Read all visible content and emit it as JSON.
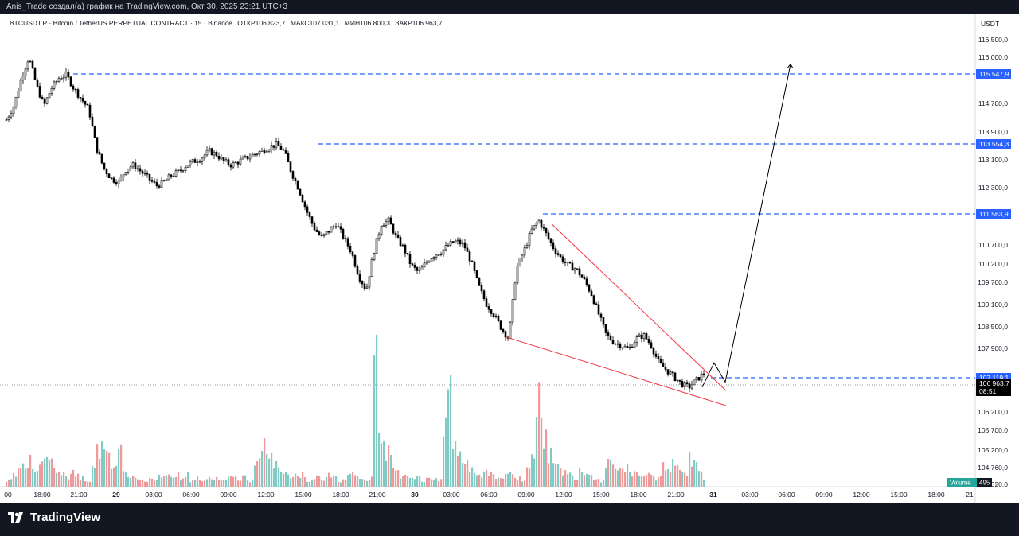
{
  "header": {
    "caption": "Anis_Trade создал(а) график на TradingView.com, Окт 30, 2025 23:21 UTC+3"
  },
  "legend": {
    "symbol": "BTCUSDT.P · Bitcoin / TetherUS PERPETUAL CONTRACT · 15 · Binance",
    "open_label": "ОТКР",
    "open": "106 823,7",
    "high_label": "МАКС",
    "high": "107 031,1",
    "low_label": "МИН",
    "low": "106 800,3",
    "close_label": "ЗАКР",
    "close": "106 963,7"
  },
  "price_axis": {
    "currency": "USDT",
    "ticks": [
      "116 500,0",
      "116 000,0",
      "114 700,0",
      "113 900,0",
      "113 100,0",
      "112 300,0",
      "110 700,0",
      "110 200,0",
      "109 700,0",
      "109 100,0",
      "108 500,0",
      "107 900,0",
      "106 200,0",
      "105 700,0",
      "105 200,0",
      "104 760,0",
      "104 320,0"
    ],
    "tag_levels": [
      "115 547,9",
      "113 554,3",
      "111 563,9",
      "107 119,1"
    ],
    "current_price": "106 963,7",
    "countdown": "08:51"
  },
  "volume": {
    "label": "Volume",
    "value": "495"
  },
  "time_axis": {
    "ticks": [
      "00",
      "18:00",
      "21:00",
      "29",
      "03:00",
      "06:00",
      "09:00",
      "12:00",
      "15:00",
      "18:00",
      "21:00",
      "30",
      "03:00",
      "06:00",
      "09:00",
      "12:00",
      "15:00",
      "18:00",
      "21:00",
      "31",
      "03:00",
      "06:00",
      "09:00",
      "12:00",
      "15:00",
      "18:00",
      "21"
    ]
  },
  "brand": {
    "name": "TradingView"
  },
  "colors": {
    "up": "#26a69a",
    "down": "#ef5350",
    "candle": "#000000",
    "level_line": "#2962ff",
    "wedge": "#f23645",
    "projection": "#000000",
    "tag_bg": "#2962ff",
    "price_tag_bg": "#000000"
  },
  "chart_data": {
    "type": "candlestick",
    "symbol": "BTCUSDT.P",
    "timeframe": "15",
    "ylim": [
      104320,
      116900
    ],
    "horizontal_levels": [
      115547.9,
      113554.3,
      111563.9,
      107119.1
    ],
    "current_price": 106963.7,
    "ohlc_last": {
      "open": 106823.7,
      "high": 107031.1,
      "low": 106800.3,
      "close": 106963.7
    },
    "price_path": [
      114200,
      114600,
      115400,
      116000,
      115200,
      114600,
      115100,
      115400,
      115500,
      115100,
      114800,
      114500,
      113400,
      112800,
      112500,
      112400,
      112800,
      112900,
      112700,
      112500,
      112300,
      112400,
      112600,
      112700,
      112900,
      113000,
      113100,
      113300,
      113200,
      113000,
      112900,
      113000,
      113100,
      113200,
      113300,
      113400,
      113500,
      113300,
      112700,
      112200,
      111600,
      111100,
      110800,
      111000,
      111200,
      110800,
      110400,
      109700,
      109300,
      110400,
      111200,
      111300,
      110800,
      110500,
      110000,
      109800,
      110100,
      110300,
      110400,
      110600,
      110700,
      110600,
      110100,
      109400,
      108900,
      108600,
      108200,
      107900,
      109900,
      110400,
      111000,
      111300,
      110900,
      110500,
      110200,
      110000,
      109900,
      109600,
      109200,
      108600,
      108000,
      107800,
      107700,
      107600,
      107900,
      108000,
      107700,
      107200,
      107000,
      106800,
      106600,
      106500,
      106700,
      106900
    ],
    "wedge": {
      "upper": [
        [
          111200,
          "start"
        ],
        [
          106400,
          "end"
        ]
      ],
      "lower": [
        [
          107950,
          "start"
        ],
        [
          105970,
          "end"
        ]
      ]
    },
    "projection_path": [
      106500,
      107200,
      106650,
      115800
    ],
    "volume_path": [
      2,
      4,
      6,
      8,
      9,
      5,
      10,
      12,
      8,
      6,
      4,
      3,
      5,
      4,
      3,
      2,
      6,
      12,
      18,
      10,
      8,
      14,
      6,
      4,
      3,
      2,
      2,
      3,
      2,
      4,
      5,
      3,
      4,
      3,
      4,
      2,
      3,
      2,
      3,
      2,
      3,
      2,
      4,
      3,
      2,
      3,
      2,
      8,
      10,
      14,
      9,
      7,
      6,
      5,
      3,
      4,
      4,
      2,
      3,
      3,
      2,
      4,
      3,
      2,
      3,
      5,
      4,
      3,
      2,
      3,
      40,
      16,
      12,
      9,
      6,
      4,
      4,
      3,
      3,
      2,
      3,
      3,
      2,
      18,
      35,
      14,
      10,
      8,
      6,
      5,
      4,
      6,
      4,
      3,
      3,
      5,
      4,
      3,
      2,
      8,
      12,
      28,
      18,
      11,
      7,
      6,
      5,
      4,
      3,
      6,
      5,
      4,
      3,
      2,
      8,
      10,
      6,
      6,
      6,
      5,
      4,
      3,
      4,
      3,
      4,
      7,
      5,
      8,
      6,
      4,
      9,
      7,
      5,
      3
    ]
  }
}
